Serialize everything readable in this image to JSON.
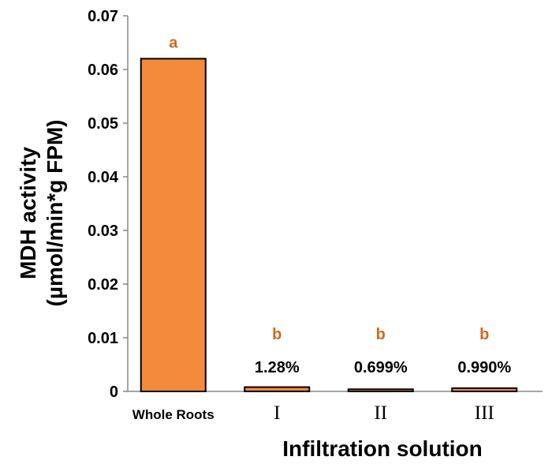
{
  "chart_data": {
    "type": "bar",
    "categories": [
      "Whole Roots",
      "I",
      "II",
      "III"
    ],
    "values": [
      0.062,
      0.0008,
      0.0004,
      0.0006
    ],
    "significance_letters": [
      "a",
      "b",
      "b",
      "b"
    ],
    "percent_labels": [
      "",
      "1.28%",
      "0.699%",
      "0.990%"
    ],
    "xlabel": "Infiltration solution",
    "ylabel_line1": "MDH activity",
    "ylabel_line2": "(µmol/min*g FPM)",
    "ylim": [
      0,
      0.07
    ],
    "yticks": [
      "0",
      "0.01",
      "0.02",
      "0.03",
      "0.04",
      "0.05",
      "0.06",
      "0.07"
    ],
    "bar_color": "#f48b3c",
    "letter_color": "#d2691e",
    "grid": false,
    "legend": "none"
  }
}
